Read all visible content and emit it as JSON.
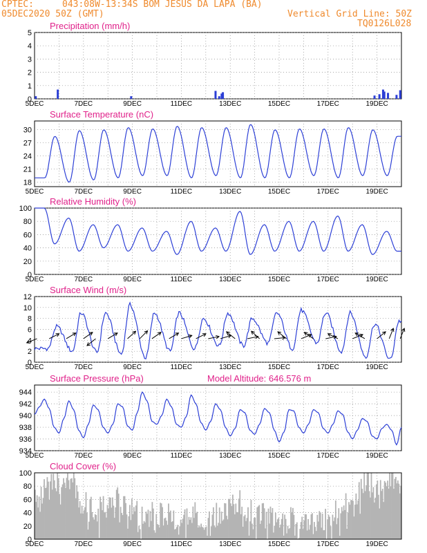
{
  "header": {
    "source": "CPTEC:",
    "location": "043:08W-13:34S   BOM JESUS DA LAPA (BA)",
    "run": "05DEC2020 50Z (GMT)",
    "grid_note": "Vertical Grid Line: 50Z",
    "code": "TQ0126L028"
  },
  "colors": {
    "header": "#ef8a2d",
    "title": "#e0218a",
    "line": "#2c3fd6",
    "cloud": "#b4b4b4",
    "arrow": "#000000"
  },
  "x_ticks": [
    "5DEC",
    "7DEC",
    "9DEC",
    "11DEC",
    "13DEC",
    "15DEC",
    "17DEC",
    "19DEC"
  ],
  "chart_data": [
    {
      "type": "bar",
      "title": "Precipitation (mm/h)",
      "ylim": [
        0,
        5
      ],
      "yticks": [
        "0",
        "1",
        "2",
        "3",
        "4",
        "5"
      ],
      "x_day_range": [
        5,
        20
      ],
      "bars": [
        [
          5.05,
          0.2
        ],
        [
          5.95,
          0.7
        ],
        [
          8.95,
          0.2
        ],
        [
          12.4,
          0.6
        ],
        [
          12.55,
          0.2
        ],
        [
          12.65,
          0.4
        ],
        [
          12.7,
          0.5
        ],
        [
          18.9,
          0.25
        ],
        [
          19.1,
          0.35
        ],
        [
          19.25,
          0.7
        ],
        [
          19.3,
          0.55
        ],
        [
          19.45,
          0.45
        ],
        [
          19.8,
          0.3
        ],
        [
          19.95,
          0.65
        ]
      ]
    },
    {
      "type": "line",
      "title": "Surface Temperature (nC)",
      "ylim": [
        17,
        32
      ],
      "yticks": [
        "18",
        "21",
        "24",
        "27",
        "30"
      ],
      "minima": [
        19.0,
        18.0,
        18.5,
        19.0,
        19.5,
        19.5,
        19.0,
        19.5,
        19.0,
        19.0,
        19.0,
        19.5,
        19.0,
        19.5,
        19.5
      ],
      "maxima": [
        28.5,
        29.8,
        30.0,
        30.5,
        30.2,
        30.8,
        30.5,
        30.5,
        31.2,
        30.0,
        30.2,
        30.2,
        30.5,
        30.0,
        28.5
      ]
    },
    {
      "type": "line",
      "title": "Relative Humidity (%)",
      "ylim": [
        0,
        100
      ],
      "yticks": [
        "0",
        "20",
        "40",
        "60",
        "80",
        "100"
      ],
      "maxima": [
        100,
        85,
        75,
        75,
        70,
        65,
        80,
        70,
        95,
        75,
        80,
        80,
        88,
        75,
        65
      ],
      "minima": [
        46,
        35,
        40,
        35,
        35,
        30,
        35,
        35,
        30,
        35,
        35,
        35,
        35,
        30,
        35
      ]
    },
    {
      "type": "line",
      "title": "Surface Wind (m/s)",
      "ylim": [
        0,
        12
      ],
      "yticks": [
        "0",
        "2",
        "4",
        "6",
        "8",
        "10",
        "12"
      ],
      "maxima": [
        6.5,
        9.0,
        9.0,
        10.5,
        9.0,
        9.0,
        8.0,
        9.0,
        8.0,
        9.0,
        9.5,
        9.0,
        9.0,
        7.0,
        7.5
      ],
      "minima": [
        2.5,
        2.0,
        1.8,
        1.5,
        0.8,
        2.0,
        2.5,
        3.0,
        3.0,
        3.5,
        2.5,
        3.5,
        2.0,
        1.0,
        0.5
      ],
      "vectors": [
        {
          "day": 5.1,
          "u": -1,
          "v": -0.4
        },
        {
          "day": 5.6,
          "u": 1,
          "v": 0.5
        },
        {
          "day": 6.3,
          "u": 1,
          "v": 0.6
        },
        {
          "day": 7.0,
          "u": 1,
          "v": 0.7
        },
        {
          "day": 7.5,
          "u": -1,
          "v": -0.8
        },
        {
          "day": 8.0,
          "u": 1,
          "v": 0.6
        },
        {
          "day": 8.8,
          "u": 1,
          "v": 0.9
        },
        {
          "day": 9.3,
          "u": 1,
          "v": 1.0
        },
        {
          "day": 9.8,
          "u": 1,
          "v": 0.7
        },
        {
          "day": 10.5,
          "u": 1,
          "v": 0.6
        },
        {
          "day": 11.0,
          "u": 1,
          "v": 0.3
        },
        {
          "day": 11.6,
          "u": 1,
          "v": 0.5
        },
        {
          "day": 12.1,
          "u": 1,
          "v": 0.2
        },
        {
          "day": 12.6,
          "u": 1,
          "v": 0.3
        },
        {
          "day": 13.2,
          "u": -1,
          "v": 0.8
        },
        {
          "day": 13.7,
          "u": 1,
          "v": 0.2
        },
        {
          "day": 14.2,
          "u": -1,
          "v": 0.9
        },
        {
          "day": 14.8,
          "u": 1,
          "v": 0.1
        },
        {
          "day": 15.3,
          "u": -1,
          "v": 0.8
        },
        {
          "day": 15.9,
          "u": 1,
          "v": 0.4
        },
        {
          "day": 16.4,
          "u": -1,
          "v": 0.7
        },
        {
          "day": 16.9,
          "u": 1,
          "v": 0.2
        },
        {
          "day": 17.4,
          "u": -1,
          "v": 0.5
        },
        {
          "day": 18.0,
          "u": 1,
          "v": 0.4
        },
        {
          "day": 18.5,
          "u": -1,
          "v": 0.6
        },
        {
          "day": 19.0,
          "u": 1,
          "v": 0.8
        },
        {
          "day": 19.5,
          "u": 0.4,
          "v": 1
        },
        {
          "day": 19.95,
          "u": 0.4,
          "v": 1
        }
      ]
    },
    {
      "type": "line",
      "title": "Surface Pressure (hPa)",
      "annotation": "Model Altitude: 646.576  m",
      "ylim": [
        934,
        945.2
      ],
      "yticks": [
        "934",
        "936",
        "938",
        "940",
        "942",
        "944"
      ],
      "days": [
        5.0,
        5.2,
        5.4,
        5.6,
        5.8,
        6.0,
        6.2,
        6.4,
        6.6,
        6.8,
        7.0,
        7.2,
        7.4,
        7.6,
        7.8,
        8.0,
        8.2,
        8.4,
        8.6,
        8.8,
        9.0,
        9.2,
        9.4,
        9.6,
        9.8,
        10.0,
        10.2,
        10.4,
        10.6,
        10.8,
        11.0,
        11.2,
        11.4,
        11.6,
        11.8,
        12.0,
        12.2,
        12.4,
        12.6,
        12.8,
        13.0,
        13.2,
        13.4,
        13.6,
        13.8,
        14.0,
        14.2,
        14.4,
        14.6,
        14.8,
        15.0,
        15.2,
        15.4,
        15.6,
        15.8,
        16.0,
        16.2,
        16.4,
        16.6,
        16.8,
        17.0,
        17.2,
        17.4,
        17.6,
        17.8,
        18.0,
        18.2,
        18.4,
        18.6,
        18.8,
        19.0,
        19.2,
        19.4,
        19.6,
        19.8,
        20.0
      ],
      "values": [
        940.2,
        941.5,
        942.8,
        941.2,
        938.0,
        937.0,
        939.5,
        942.5,
        941.0,
        937.5,
        936.2,
        938.5,
        941.8,
        941.0,
        938.0,
        937.0,
        938.5,
        942.0,
        941.5,
        938.2,
        937.5,
        940.5,
        944.0,
        942.5,
        939.0,
        938.5,
        940.0,
        942.8,
        941.5,
        938.5,
        938.0,
        939.8,
        943.5,
        942.0,
        938.8,
        937.5,
        939.0,
        942.0,
        941.0,
        938.0,
        936.5,
        937.8,
        941.0,
        940.5,
        937.5,
        936.8,
        938.5,
        941.2,
        940.5,
        937.5,
        935.5,
        937.2,
        941.0,
        940.8,
        938.0,
        937.0,
        938.5,
        941.0,
        940.5,
        937.8,
        937.0,
        938.5,
        940.8,
        940.2,
        937.2,
        936.0,
        937.5,
        939.5,
        939.0,
        936.5,
        936.0,
        937.8,
        938.5,
        937.5,
        935.0,
        938.0
      ]
    },
    {
      "type": "area",
      "title": "Cloud Cover (%)",
      "ylim": [
        0,
        100
      ],
      "yticks": [
        "0",
        "20",
        "40",
        "60",
        "80",
        "100"
      ],
      "level_days": [
        5.0,
        5.5,
        6.0,
        6.5,
        7.0,
        7.5,
        8.0,
        8.5,
        9.0,
        9.5,
        10.0,
        10.5,
        11.0,
        11.5,
        12.0,
        12.5,
        13.0,
        13.5,
        14.0,
        14.5,
        15.0,
        15.5,
        16.0,
        16.5,
        17.0,
        17.5,
        18.0,
        18.5,
        19.0,
        19.5,
        20.0
      ],
      "levels": [
        65,
        75,
        88,
        85,
        55,
        45,
        50,
        60,
        45,
        30,
        40,
        35,
        25,
        40,
        30,
        35,
        50,
        55,
        40,
        35,
        20,
        30,
        35,
        25,
        28,
        45,
        60,
        85,
        90,
        90,
        95
      ]
    }
  ]
}
